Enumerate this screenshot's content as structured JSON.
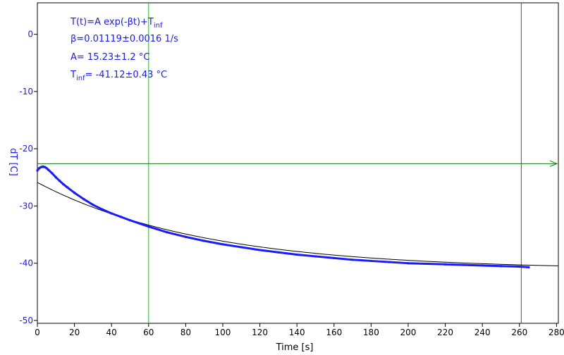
{
  "chart_data": {
    "type": "scatter",
    "xlabel": "Time [s]",
    "ylabel": "dT [C]",
    "xlim": [
      0,
      281
    ],
    "ylim": [
      -50.5,
      5.5
    ],
    "xticks": [
      0,
      20,
      40,
      60,
      80,
      100,
      120,
      140,
      160,
      180,
      200,
      220,
      240,
      260,
      280
    ],
    "yticks": [
      0,
      -10,
      -20,
      -30,
      -40,
      -50
    ],
    "grid": false,
    "fit": {
      "formula_main": "T(t)=A exp(-βt)+T",
      "formula_sub": "inf",
      "beta_text": "β=0.01119±0.0016 1/s",
      "A_text": "A= 15.23±1.2 °C",
      "tinf_main": "T",
      "tinf_sub": "inf",
      "tinf_rest": "= -41.12±0.43 °C",
      "beta": 0.01119,
      "A": 15.23,
      "T_inf": -41.12,
      "x_range": [
        0,
        281
      ]
    },
    "markers": {
      "vertical_green_x": 60,
      "vertical_red_x": 261,
      "horizontal_green_y": -22.6
    },
    "series": [
      {
        "color": "#1a1aff",
        "x": [
          0,
          1,
          2,
          3,
          4,
          5,
          6,
          8,
          10,
          12,
          14,
          16,
          20,
          25,
          30,
          35,
          40,
          45,
          50,
          60,
          70,
          80,
          90,
          100,
          110,
          120,
          130,
          140,
          150,
          160,
          170,
          180,
          190,
          200,
          210,
          220,
          230,
          240,
          250,
          260,
          265
        ],
        "y": [
          -23.8,
          -23.4,
          -23.2,
          -23.1,
          -23.2,
          -23.4,
          -23.7,
          -24.3,
          -25.0,
          -25.6,
          -26.2,
          -26.7,
          -27.7,
          -28.8,
          -29.8,
          -30.6,
          -31.3,
          -31.9,
          -32.5,
          -33.6,
          -34.6,
          -35.4,
          -36.1,
          -36.7,
          -37.2,
          -37.7,
          -38.1,
          -38.5,
          -38.8,
          -39.1,
          -39.4,
          -39.6,
          -39.8,
          -40.0,
          -40.1,
          -40.2,
          -40.3,
          -40.4,
          -40.5,
          -40.6,
          -40.7
        ]
      }
    ]
  },
  "colors": {
    "data": "#1a1aff",
    "fit": "#000000",
    "green": "#22bb22",
    "dark_green": "#117711",
    "red": "#cc2222"
  }
}
